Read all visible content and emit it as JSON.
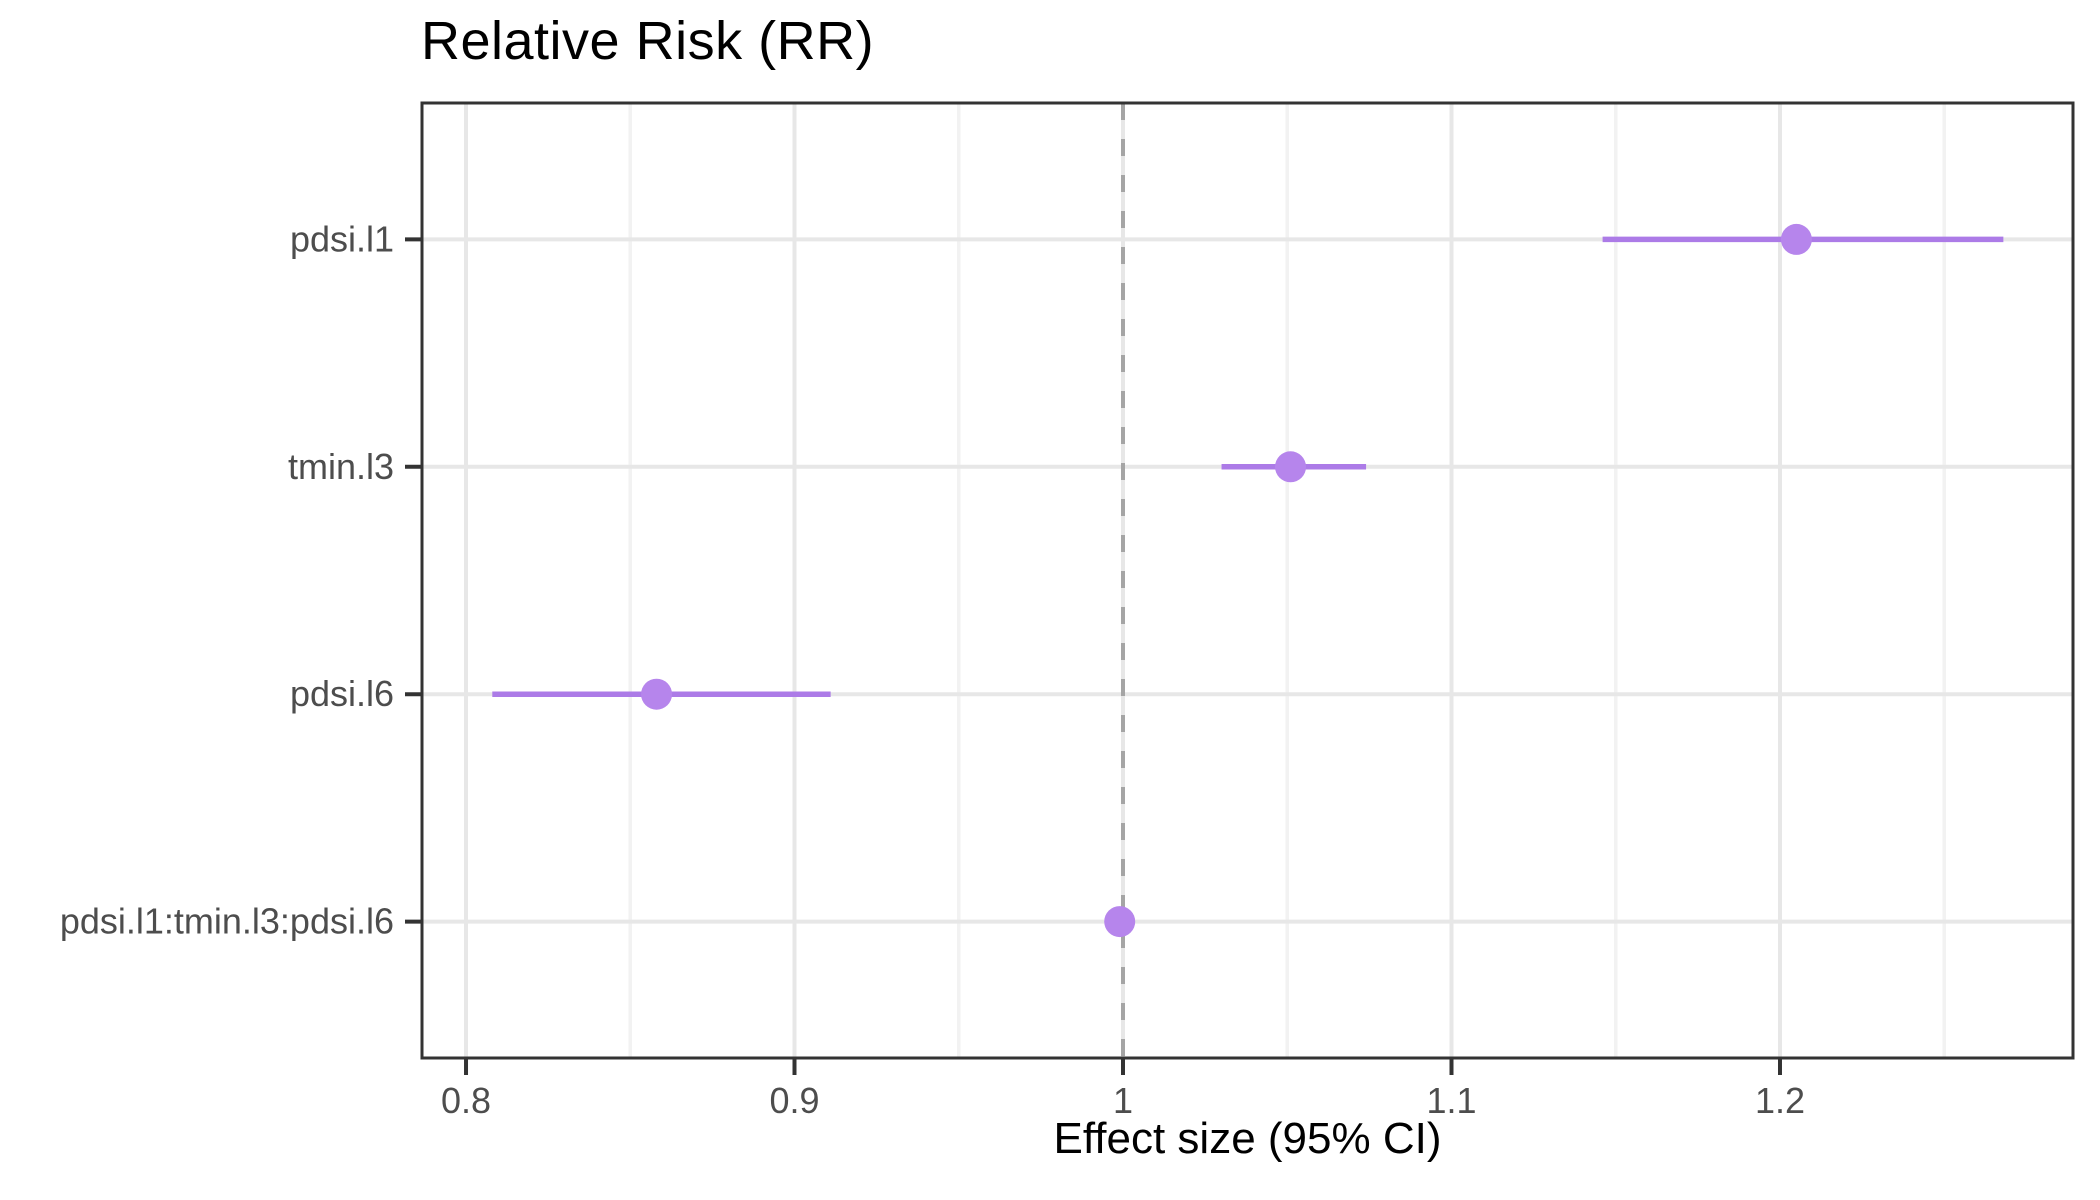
{
  "chart_data": {
    "type": "scatter",
    "subtype": "forest-plot",
    "title": "Relative Risk (RR)",
    "xlabel": "Effect size (95% CI)",
    "ylabel": "",
    "legend": "none",
    "grid": "on",
    "categories": [
      "pdsi.l1",
      "tmin.l3",
      "pdsi.l6",
      "pdsi.l1:tmin.l3:pdsi.l6"
    ],
    "points": [
      {
        "label": "pdsi.l1",
        "estimate": 1.205,
        "ci_low": 1.146,
        "ci_high": 1.268
      },
      {
        "label": "tmin.l3",
        "estimate": 1.051,
        "ci_low": 1.03,
        "ci_high": 1.074
      },
      {
        "label": "pdsi.l6",
        "estimate": 0.858,
        "ci_low": 0.808,
        "ci_high": 0.911
      },
      {
        "label": "pdsi.l1:tmin.l3:pdsi.l6",
        "estimate": 0.999,
        "ci_low": 0.995,
        "ci_high": 1.003
      }
    ],
    "x_ticks": [
      0.8,
      0.9,
      1,
      1.1,
      1.2
    ],
    "x_tick_labels": [
      "0.8",
      "0.9",
      "1",
      "1.1",
      "1.2"
    ],
    "x_minor_breaks": [
      0.85,
      0.95,
      1.05,
      1.15,
      1.25
    ],
    "xlim": [
      0.7866,
      1.2892
    ],
    "reference_line": {
      "x": 1,
      "style": "dashed"
    },
    "colors": {
      "point": "#B685EC",
      "ci_line": "#AC7BE7",
      "reference": "#A5A5A5",
      "grid_major": "#E7E7E7",
      "grid_minor": "#F2F2F2",
      "panel_border": "#333333",
      "tick_mark": "#333333",
      "axis_text": "#4D4D4D",
      "title_text": "#000000",
      "background": "#FFFFFF"
    }
  }
}
